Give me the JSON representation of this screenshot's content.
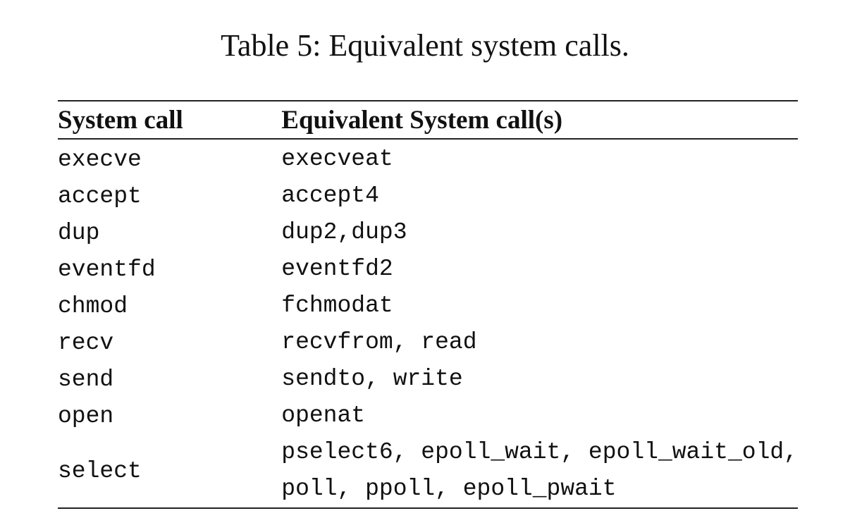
{
  "caption": "Table 5: Equivalent system calls.",
  "table": {
    "headers": [
      "System call",
      "Equivalent System call(s)"
    ],
    "rows": [
      {
        "call": "execve",
        "equivalents": [
          "execveat"
        ]
      },
      {
        "call": "accept",
        "equivalents": [
          "accept4"
        ]
      },
      {
        "call": "dup",
        "equivalents": [
          "dup2,dup3"
        ]
      },
      {
        "call": "eventfd",
        "equivalents": [
          "eventfd2"
        ]
      },
      {
        "call": "chmod",
        "equivalents": [
          "fchmodat"
        ]
      },
      {
        "call": "recv",
        "equivalents": [
          "recvfrom, read"
        ]
      },
      {
        "call": "send",
        "equivalents": [
          "sendto, write"
        ]
      },
      {
        "call": "open",
        "equivalents": [
          "openat"
        ]
      },
      {
        "call": "select",
        "equivalents": [
          "pselect6, epoll_wait, epoll_wait_old,",
          "poll, ppoll, epoll_pwait"
        ]
      }
    ]
  }
}
